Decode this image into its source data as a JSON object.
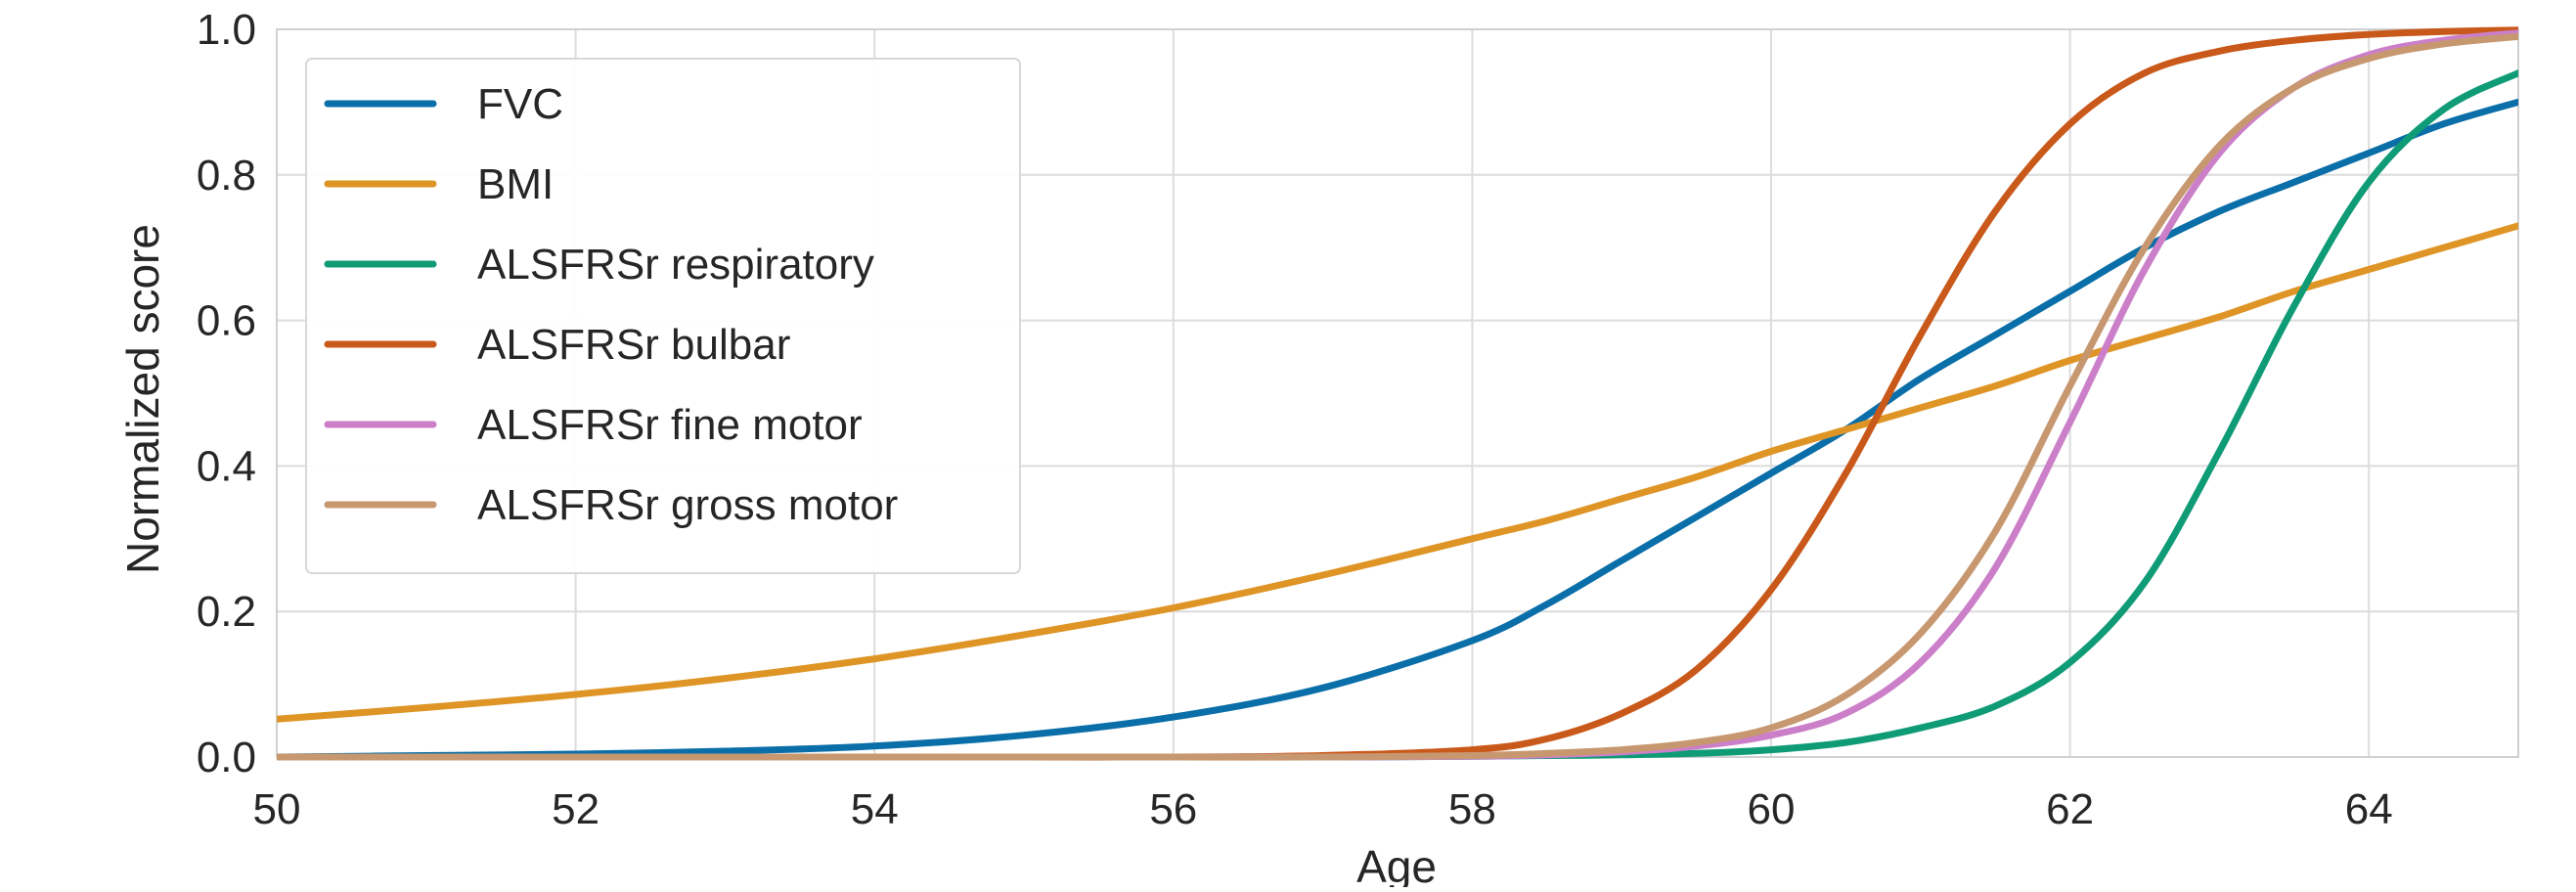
{
  "chart_data": {
    "type": "line",
    "title": "",
    "xlabel": "Age",
    "ylabel": "Normalized score",
    "xlim": [
      50,
      65
    ],
    "ylim": [
      0,
      1
    ],
    "xticks": [
      "50",
      "52",
      "54",
      "56",
      "58",
      "60",
      "62",
      "64"
    ],
    "yticks": [
      "0.0",
      "0.2",
      "0.4",
      "0.6",
      "0.8",
      "1.0"
    ],
    "grid": true,
    "legend_position": "upper-left",
    "x": [
      50,
      51,
      52,
      53,
      54,
      55,
      56,
      57,
      58,
      58.5,
      59,
      59.5,
      60,
      60.5,
      61,
      61.5,
      62,
      62.5,
      63,
      63.5,
      64,
      64.5,
      65
    ],
    "series": [
      {
        "name": "FVC",
        "color": "#0a6ea8",
        "values": [
          0.0,
          0.002,
          0.004,
          0.008,
          0.015,
          0.03,
          0.055,
          0.095,
          0.16,
          0.21,
          0.27,
          0.33,
          0.39,
          0.45,
          0.52,
          0.58,
          0.64,
          0.7,
          0.75,
          0.79,
          0.83,
          0.87,
          0.9
        ]
      },
      {
        "name": "BMI",
        "color": "#de9526",
        "values": [
          0.052,
          0.068,
          0.086,
          0.108,
          0.135,
          0.168,
          0.205,
          0.25,
          0.3,
          0.325,
          0.355,
          0.385,
          0.42,
          0.45,
          0.48,
          0.51,
          0.545,
          0.575,
          0.605,
          0.64,
          0.67,
          0.7,
          0.73
        ]
      },
      {
        "name": "ALSFRSr respiratory",
        "color": "#0f9b76",
        "values": [
          0,
          0,
          0,
          0,
          0,
          0,
          0,
          0,
          0.001,
          0.002,
          0.003,
          0.005,
          0.01,
          0.02,
          0.04,
          0.07,
          0.13,
          0.24,
          0.42,
          0.62,
          0.79,
          0.89,
          0.94
        ]
      },
      {
        "name": "ALSFRSr bulbar",
        "color": "#c9591a",
        "values": [
          0,
          0,
          0,
          0,
          0,
          0,
          0,
          0.002,
          0.01,
          0.025,
          0.06,
          0.12,
          0.23,
          0.39,
          0.58,
          0.75,
          0.87,
          0.94,
          0.97,
          0.985,
          0.993,
          0.997,
          0.999
        ]
      },
      {
        "name": "ALSFRSr fine motor",
        "color": "#cc7fc9",
        "values": [
          0,
          0,
          0,
          0,
          0,
          0,
          0,
          0,
          0.001,
          0.003,
          0.007,
          0.015,
          0.03,
          0.06,
          0.13,
          0.26,
          0.46,
          0.67,
          0.83,
          0.92,
          0.965,
          0.985,
          0.995
        ]
      },
      {
        "name": "ALSFRSr gross motor",
        "color": "#c79870",
        "values": [
          0,
          0,
          0,
          0,
          0,
          0,
          0,
          0,
          0.002,
          0.005,
          0.01,
          0.02,
          0.04,
          0.085,
          0.17,
          0.31,
          0.51,
          0.7,
          0.84,
          0.92,
          0.96,
          0.98,
          0.99
        ]
      }
    ]
  }
}
